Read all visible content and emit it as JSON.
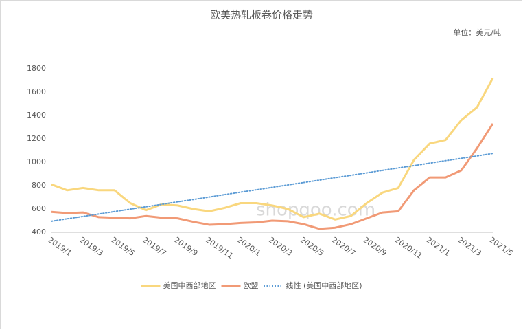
{
  "chart_data": {
    "type": "line",
    "title": "欧美热轧板卷价格走势",
    "unit_label": "单位：美元/吨",
    "watermark": "shopqoo.com",
    "categories": [
      "2019/1",
      null,
      "2019/3",
      null,
      "2019/5",
      null,
      "2019/7",
      null,
      "2019/9",
      null,
      "2019/11",
      null,
      "2020/1",
      null,
      "2020/3",
      null,
      "2020/5",
      null,
      "2020/7",
      null,
      "2020/9",
      null,
      "2020/11",
      null,
      "2021/1",
      null,
      "2021/3",
      null,
      "2021/5"
    ],
    "series": [
      {
        "name": "美国中西部地区",
        "color": "#f9d77e",
        "style": "solid",
        "values": [
          810,
          760,
          780,
          760,
          760,
          650,
          590,
          640,
          630,
          600,
          580,
          610,
          650,
          650,
          630,
          600,
          530,
          560,
          510,
          540,
          650,
          740,
          780,
          1020,
          1160,
          1190,
          1360,
          1470,
          1720
        ]
      },
      {
        "name": "欧盟",
        "color": "#f19a76",
        "style": "solid",
        "values": [
          575,
          565,
          570,
          530,
          525,
          520,
          540,
          525,
          520,
          490,
          465,
          470,
          480,
          485,
          500,
          495,
          470,
          430,
          440,
          470,
          520,
          570,
          580,
          760,
          870,
          870,
          930,
          1120,
          1330
        ]
      },
      {
        "name": "线性 (美国中西部地区)",
        "color": "#5b9bd5",
        "style": "dotted",
        "values": [
          495,
          516,
          536,
          557,
          578,
          599,
          619,
          640,
          661,
          681,
          702,
          723,
          744,
          764,
          785,
          806,
          826,
          847,
          868,
          888,
          909,
          930,
          951,
          971,
          992,
          1013,
          1033,
          1054,
          1075
        ]
      }
    ],
    "ylim": [
      400,
      1800
    ],
    "yticks": [
      400,
      600,
      800,
      1000,
      1200,
      1400,
      1600,
      1800
    ],
    "grid": false
  }
}
